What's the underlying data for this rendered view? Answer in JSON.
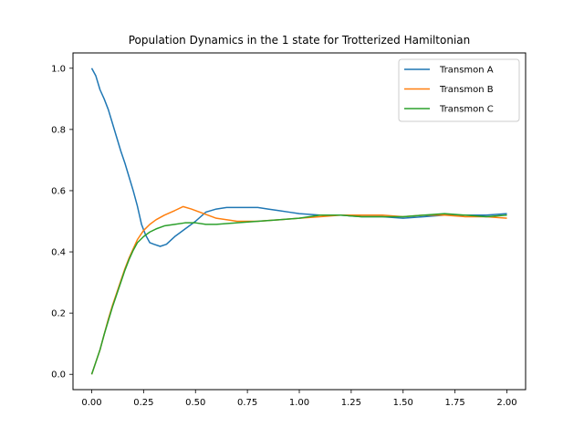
{
  "chart_data": {
    "type": "line",
    "title": "Population Dynamics in the 1 state for Trotterized Hamiltonian",
    "xlabel": "",
    "ylabel": "",
    "xlim": [
      -0.09,
      2.09
    ],
    "ylim": [
      -0.05,
      1.05
    ],
    "xticks": [
      0.0,
      0.25,
      0.5,
      0.75,
      1.0,
      1.25,
      1.5,
      1.75,
      2.0
    ],
    "xtick_labels": [
      "0.00",
      "0.25",
      "0.50",
      "0.75",
      "1.00",
      "1.25",
      "1.50",
      "1.75",
      "2.00"
    ],
    "yticks": [
      0.0,
      0.2,
      0.4,
      0.6,
      0.8,
      1.0
    ],
    "ytick_labels": [
      "0.0",
      "0.2",
      "0.4",
      "0.6",
      "0.8",
      "1.0"
    ],
    "grid": false,
    "legend_position": "top-right",
    "series": [
      {
        "name": "Transmon A",
        "color": "#1f77b4",
        "points": [
          [
            0.0,
            1.0
          ],
          [
            0.02,
            0.975
          ],
          [
            0.04,
            0.93
          ],
          [
            0.06,
            0.9
          ],
          [
            0.08,
            0.865
          ],
          [
            0.1,
            0.82
          ],
          [
            0.12,
            0.775
          ],
          [
            0.14,
            0.73
          ],
          [
            0.16,
            0.69
          ],
          [
            0.18,
            0.645
          ],
          [
            0.2,
            0.6
          ],
          [
            0.22,
            0.55
          ],
          [
            0.24,
            0.49
          ],
          [
            0.26,
            0.455
          ],
          [
            0.28,
            0.43
          ],
          [
            0.3,
            0.425
          ],
          [
            0.33,
            0.418
          ],
          [
            0.36,
            0.425
          ],
          [
            0.4,
            0.45
          ],
          [
            0.45,
            0.475
          ],
          [
            0.5,
            0.5
          ],
          [
            0.55,
            0.53
          ],
          [
            0.6,
            0.54
          ],
          [
            0.65,
            0.545
          ],
          [
            0.7,
            0.545
          ],
          [
            0.75,
            0.545
          ],
          [
            0.8,
            0.545
          ],
          [
            0.85,
            0.54
          ],
          [
            0.9,
            0.535
          ],
          [
            0.95,
            0.53
          ],
          [
            1.0,
            0.525
          ],
          [
            1.1,
            0.52
          ],
          [
            1.2,
            0.52
          ],
          [
            1.3,
            0.515
          ],
          [
            1.4,
            0.515
          ],
          [
            1.5,
            0.51
          ],
          [
            1.6,
            0.515
          ],
          [
            1.7,
            0.52
          ],
          [
            1.8,
            0.52
          ],
          [
            1.9,
            0.52
          ],
          [
            2.0,
            0.525
          ]
        ]
      },
      {
        "name": "Transmon B",
        "color": "#ff7f0e",
        "points": [
          [
            0.0,
            0.0
          ],
          [
            0.02,
            0.04
          ],
          [
            0.04,
            0.08
          ],
          [
            0.06,
            0.13
          ],
          [
            0.08,
            0.18
          ],
          [
            0.1,
            0.225
          ],
          [
            0.12,
            0.265
          ],
          [
            0.14,
            0.305
          ],
          [
            0.16,
            0.345
          ],
          [
            0.18,
            0.38
          ],
          [
            0.2,
            0.41
          ],
          [
            0.22,
            0.44
          ],
          [
            0.25,
            0.47
          ],
          [
            0.28,
            0.49
          ],
          [
            0.31,
            0.505
          ],
          [
            0.35,
            0.52
          ],
          [
            0.4,
            0.535
          ],
          [
            0.44,
            0.548
          ],
          [
            0.48,
            0.54
          ],
          [
            0.52,
            0.53
          ],
          [
            0.56,
            0.52
          ],
          [
            0.6,
            0.51
          ],
          [
            0.7,
            0.5
          ],
          [
            0.8,
            0.5
          ],
          [
            0.9,
            0.505
          ],
          [
            1.0,
            0.51
          ],
          [
            1.1,
            0.515
          ],
          [
            1.2,
            0.52
          ],
          [
            1.3,
            0.52
          ],
          [
            1.4,
            0.52
          ],
          [
            1.5,
            0.515
          ],
          [
            1.6,
            0.52
          ],
          [
            1.7,
            0.52
          ],
          [
            1.8,
            0.515
          ],
          [
            1.9,
            0.515
          ],
          [
            2.0,
            0.51
          ]
        ]
      },
      {
        "name": "Transmon C",
        "color": "#2ca02c",
        "points": [
          [
            0.0,
            0.0
          ],
          [
            0.02,
            0.04
          ],
          [
            0.04,
            0.08
          ],
          [
            0.06,
            0.13
          ],
          [
            0.08,
            0.175
          ],
          [
            0.1,
            0.22
          ],
          [
            0.12,
            0.26
          ],
          [
            0.14,
            0.3
          ],
          [
            0.16,
            0.34
          ],
          [
            0.18,
            0.375
          ],
          [
            0.2,
            0.405
          ],
          [
            0.22,
            0.43
          ],
          [
            0.25,
            0.45
          ],
          [
            0.28,
            0.465
          ],
          [
            0.31,
            0.475
          ],
          [
            0.35,
            0.485
          ],
          [
            0.4,
            0.49
          ],
          [
            0.45,
            0.495
          ],
          [
            0.5,
            0.495
          ],
          [
            0.55,
            0.49
          ],
          [
            0.6,
            0.49
          ],
          [
            0.7,
            0.495
          ],
          [
            0.8,
            0.5
          ],
          [
            0.9,
            0.505
          ],
          [
            1.0,
            0.51
          ],
          [
            1.1,
            0.52
          ],
          [
            1.2,
            0.52
          ],
          [
            1.3,
            0.515
          ],
          [
            1.4,
            0.515
          ],
          [
            1.5,
            0.515
          ],
          [
            1.6,
            0.52
          ],
          [
            1.7,
            0.525
          ],
          [
            1.8,
            0.52
          ],
          [
            1.9,
            0.515
          ],
          [
            2.0,
            0.52
          ]
        ]
      }
    ]
  }
}
